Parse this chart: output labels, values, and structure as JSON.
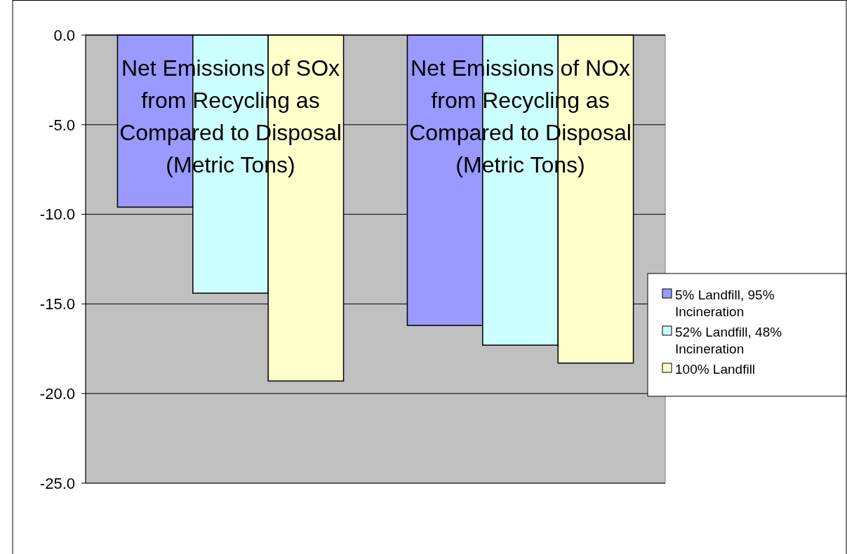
{
  "chart_data": {
    "type": "bar",
    "categories": [
      "Net Emissions of SOx from Recycling as Compared to Disposal (Metric Tons)",
      "Net Emissions of NOx from Recycling as Compared to Disposal (Metric Tons)"
    ],
    "series": [
      {
        "name": "5% Landfill, 95% Incineration",
        "color": "#9999ff",
        "values": [
          -9.6,
          -16.2
        ]
      },
      {
        "name": "52% Landfill, 48% Incineration",
        "color": "#ccffff",
        "values": [
          -14.4,
          -17.3
        ]
      },
      {
        "name": "100% Landfill",
        "color": "#ffffcc",
        "values": [
          -19.3,
          -18.3
        ]
      }
    ],
    "ylim": [
      -25,
      0
    ],
    "yticks": [
      {
        "value": 0,
        "label": "0.0"
      },
      {
        "value": -5,
        "label": "-5.0"
      },
      {
        "value": -10,
        "label": "-10.0"
      },
      {
        "value": -15,
        "label": "-15.0"
      },
      {
        "value": -20,
        "label": "-20.0"
      },
      {
        "value": -25,
        "label": "-25.0"
      }
    ],
    "grid": "y",
    "legend": "right"
  }
}
